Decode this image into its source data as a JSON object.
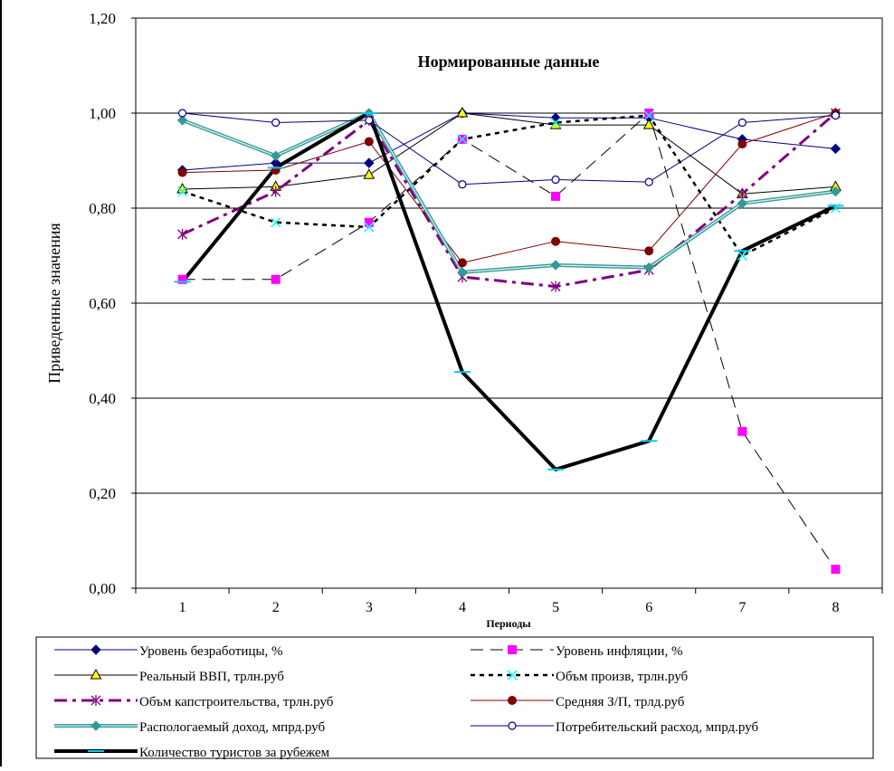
{
  "chart_data": {
    "type": "line",
    "title": "Нормированные данные",
    "xlabel": "Периоды",
    "ylabel": "Приведенные значения",
    "categories": [
      "1",
      "2",
      "3",
      "4",
      "5",
      "6",
      "7",
      "8"
    ],
    "ylim": [
      0,
      1.2
    ],
    "y_ticks": [
      "0,00",
      "0,20",
      "0,40",
      "0,60",
      "0,80",
      "1,00",
      "1,20"
    ],
    "y_tick_values": [
      0,
      0.2,
      0.4,
      0.6,
      0.8,
      1.0,
      1.2
    ],
    "grid": "horizontal major gridlines",
    "legend_position": "bottom",
    "series": [
      {
        "name": "Уровень безработицы, %",
        "values": [
          0.88,
          0.895,
          0.895,
          1.0,
          0.99,
          0.99,
          0.945,
          0.925
        ],
        "color": "#000080",
        "dash": "solid",
        "width": 1,
        "marker": "diamond",
        "marker_fill": "#000080"
      },
      {
        "name": "Уровень инфляции, %",
        "values": [
          0.65,
          0.65,
          0.77,
          0.945,
          0.825,
          1.0,
          0.33,
          0.04
        ],
        "color": "#000000",
        "dash": "long-dash",
        "width": 1,
        "marker": "square",
        "marker_fill": "#ff00ff"
      },
      {
        "name": "Реальный ВВП, трлн.руб",
        "values": [
          0.84,
          0.845,
          0.87,
          1.0,
          0.975,
          0.975,
          0.83,
          0.845
        ],
        "color": "#000000",
        "dash": "solid",
        "width": 1,
        "marker": "triangle",
        "marker_fill": "#ffff00"
      },
      {
        "name": "Объм произв, трлн.руб",
        "values": [
          0.835,
          0.77,
          0.76,
          0.945,
          0.98,
          0.995,
          0.7,
          0.8
        ],
        "color": "#000000",
        "dash": "dashed",
        "width": 2.5,
        "marker": "x",
        "marker_fill": "#00ffff"
      },
      {
        "name": "Объм капстроительства, трлн.руб",
        "values": [
          0.745,
          0.835,
          0.985,
          0.655,
          0.635,
          0.67,
          0.83,
          1.0
        ],
        "color": "#800080",
        "dash": "dash-dot",
        "width": 3,
        "marker": "star",
        "marker_fill": "#800080"
      },
      {
        "name": "Средняя З/П, трлд.руб",
        "values": [
          0.875,
          0.88,
          0.94,
          0.685,
          0.73,
          0.71,
          0.935,
          1.0
        ],
        "color": "#800000",
        "dash": "solid",
        "width": 1,
        "marker": "circle",
        "marker_fill": "#800000"
      },
      {
        "name": "Распологаемый доход, мпрд.руб",
        "values": [
          0.985,
          0.91,
          1.0,
          0.665,
          0.68,
          0.675,
          0.81,
          0.835
        ],
        "color": "#339999",
        "dash": "double",
        "width": 4,
        "marker": "diamond",
        "marker_fill": "#339999"
      },
      {
        "name": "Потребительский расход, мпрд.руб",
        "values": [
          1.0,
          0.98,
          0.985,
          0.85,
          0.86,
          0.855,
          0.98,
          0.995
        ],
        "color": "#000080",
        "dash": "solid",
        "width": 1,
        "marker": "circle-open",
        "marker_fill": "#ffffff"
      },
      {
        "name": "Количество туристов за рубежем",
        "values": [
          0.645,
          0.885,
          1.0,
          0.455,
          0.25,
          0.31,
          0.71,
          0.805
        ],
        "color": "#000000",
        "dash": "solid",
        "width": 4,
        "marker": "dash",
        "marker_fill": "#00ccff"
      }
    ]
  }
}
